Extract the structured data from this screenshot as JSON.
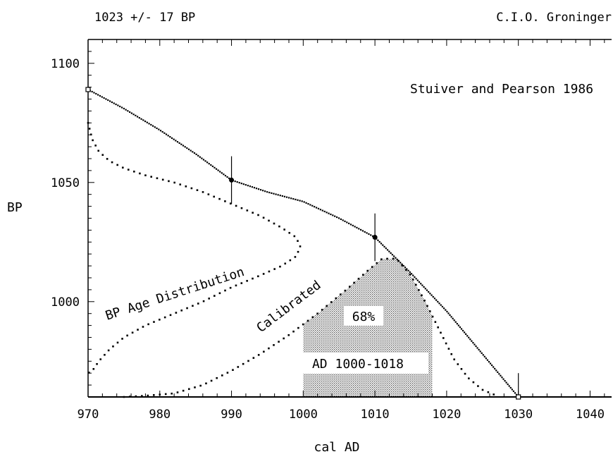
{
  "header": {
    "measurement": "1023 +/- 17 BP",
    "lab": "C.I.O. Groninger"
  },
  "chart_data": {
    "type": "line",
    "xlabel": "cal AD",
    "ylabel": "BP",
    "xlim": [
      970,
      1043
    ],
    "ylim": [
      960,
      1110
    ],
    "x_ticks": [
      970,
      980,
      990,
      1000,
      1010,
      1020,
      1030,
      1040
    ],
    "y_ticks": [
      1000,
      1050,
      1100
    ],
    "annotations": {
      "curve_source": "Stuiver and Pearson 1986",
      "bp_distribution": "BP Age Distribution",
      "calibrated": "Calibrated",
      "percent": "68%",
      "range": "AD 1000-1018"
    },
    "calibration_curve": {
      "x": [
        970,
        975,
        980,
        985,
        990,
        995,
        1000,
        1005,
        1010,
        1015,
        1020,
        1025,
        1030
      ],
      "y": [
        1089,
        1081,
        1072,
        1062,
        1051,
        1046,
        1042,
        1035,
        1027,
        1012,
        996,
        978,
        960
      ]
    },
    "calibration_markers": [
      {
        "x": 970,
        "y": 1089,
        "err": 0,
        "shape": "square"
      },
      {
        "x": 990,
        "y": 1051,
        "err": 10,
        "shape": "dot"
      },
      {
        "x": 1010,
        "y": 1027,
        "err": 10,
        "shape": "dot"
      },
      {
        "x": 1030,
        "y": 960,
        "err": 10,
        "shape": "square"
      }
    ],
    "bp_age_distribution": {
      "x": [
        970,
        970.6,
        971.5,
        973,
        975,
        978,
        982,
        986,
        990,
        994,
        997,
        999,
        999.6,
        999,
        997,
        994,
        990,
        986,
        982,
        978,
        975,
        973,
        971.5,
        970.6,
        970
      ],
      "y": [
        1075,
        1068,
        1063,
        1059,
        1056,
        1053,
        1050,
        1046,
        1041,
        1036,
        1031,
        1027,
        1023,
        1019,
        1015,
        1011,
        1006,
        1000,
        995,
        990,
        985,
        980,
        975,
        971,
        970
      ]
    },
    "calibrated_distribution": {
      "x": [
        975,
        978,
        982,
        986,
        990,
        994,
        998,
        1002,
        1006,
        1009,
        1011,
        1013,
        1015,
        1017,
        1019,
        1021,
        1023,
        1025,
        1027
      ],
      "y": [
        960,
        960.5,
        961.5,
        965,
        971,
        978,
        986,
        995,
        1005,
        1013,
        1018,
        1018,
        1011,
        1000,
        988,
        976,
        968,
        963,
        960.5
      ]
    },
    "range_68": {
      "from": 1000,
      "to": 1018
    }
  }
}
